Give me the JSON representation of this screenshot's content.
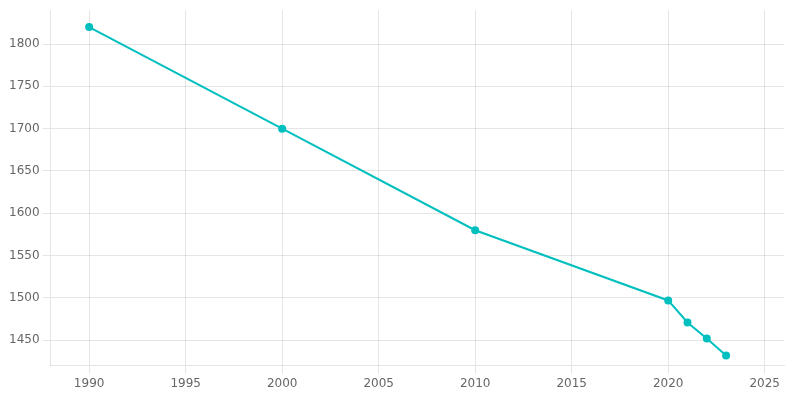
{
  "chart_data": {
    "type": "line",
    "x": [
      1990,
      2000,
      2010,
      2020,
      2021,
      2022,
      2023
    ],
    "values": [
      1820,
      1700,
      1580,
      1497,
      1471,
      1452,
      1432
    ],
    "color": "#00BFBF",
    "marker": "circle",
    "xlim": [
      1988,
      2026
    ],
    "xticks": [
      1990,
      1995,
      2000,
      2005,
      2010,
      2015,
      2020,
      2025
    ],
    "ylim": [
      1420,
      1840
    ],
    "yticks": [
      1450,
      1500,
      1550,
      1600,
      1650,
      1700,
      1750,
      1800
    ],
    "grid": true
  }
}
